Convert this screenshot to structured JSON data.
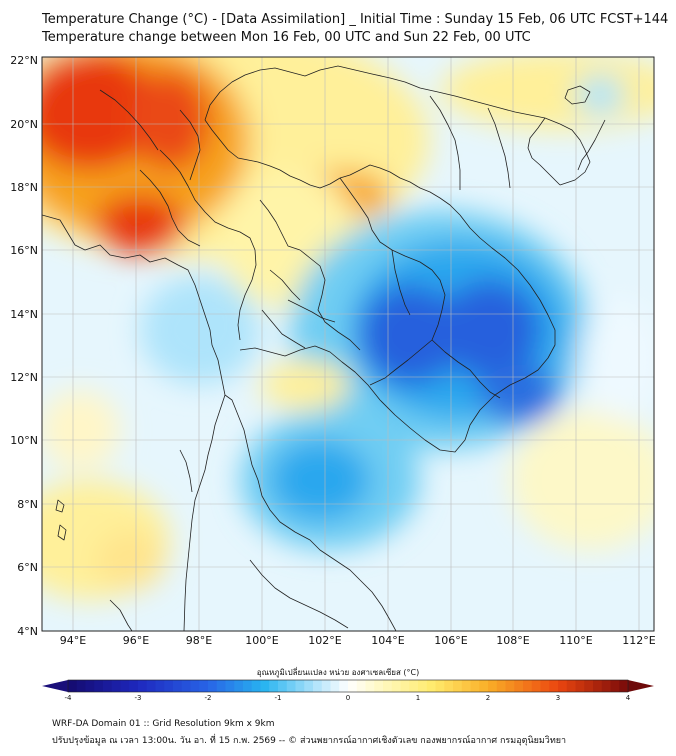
{
  "title_line1": "Temperature Change (°C) - [Data Assimilation] _ Initial Time : Sunday 15 Feb, 06 UTC FCST+144",
  "title_line2": "Temperature change between Mon 16 Feb, 00 UTC and Sun 22 Feb, 00 UTC",
  "lat_labels": [
    "22°N",
    "20°N",
    "18°N",
    "16°N",
    "14°N",
    "12°N",
    "10°N",
    "8°N",
    "6°N",
    "4°N"
  ],
  "lon_labels": [
    "94°E",
    "96°E",
    "98°E",
    "100°E",
    "102°E",
    "104°E",
    "106°E",
    "108°E",
    "110°E",
    "112°E"
  ],
  "colorbar_label": "อุณหภูมิเปลี่ยนแปลง หน่วย องศาเซลเซียส (°C)",
  "colorbar_ticks": [
    "-4",
    "-3",
    "-2",
    "-1",
    "0",
    "1",
    "2",
    "3",
    "4"
  ],
  "colorbar_range": [
    -4,
    4
  ],
  "footer_line1": "WRF-DA Domain 01 :: Grid Resolution 9km x 9km",
  "footer_line2": "ปรับปรุงข้อมูล ณ เวลา 13:00น. วัน อา. ที่ 15 ก.พ. 2569 -- © ส่วนพยากรณ์อากาศเชิงตัวเลข กองพยากรณ์อากาศ กรมอุตุนิยมวิทยา",
  "colors": {
    "strong_cold": "#1f43d6",
    "cold": "#2aa7ee",
    "cool": "#aee4fb",
    "neutral": "#ffffff",
    "warm": "#fff09a",
    "hot": "#f7a21f",
    "very_hot": "#e8380f",
    "border": "#222222",
    "grid": "#bbbbbb"
  }
}
